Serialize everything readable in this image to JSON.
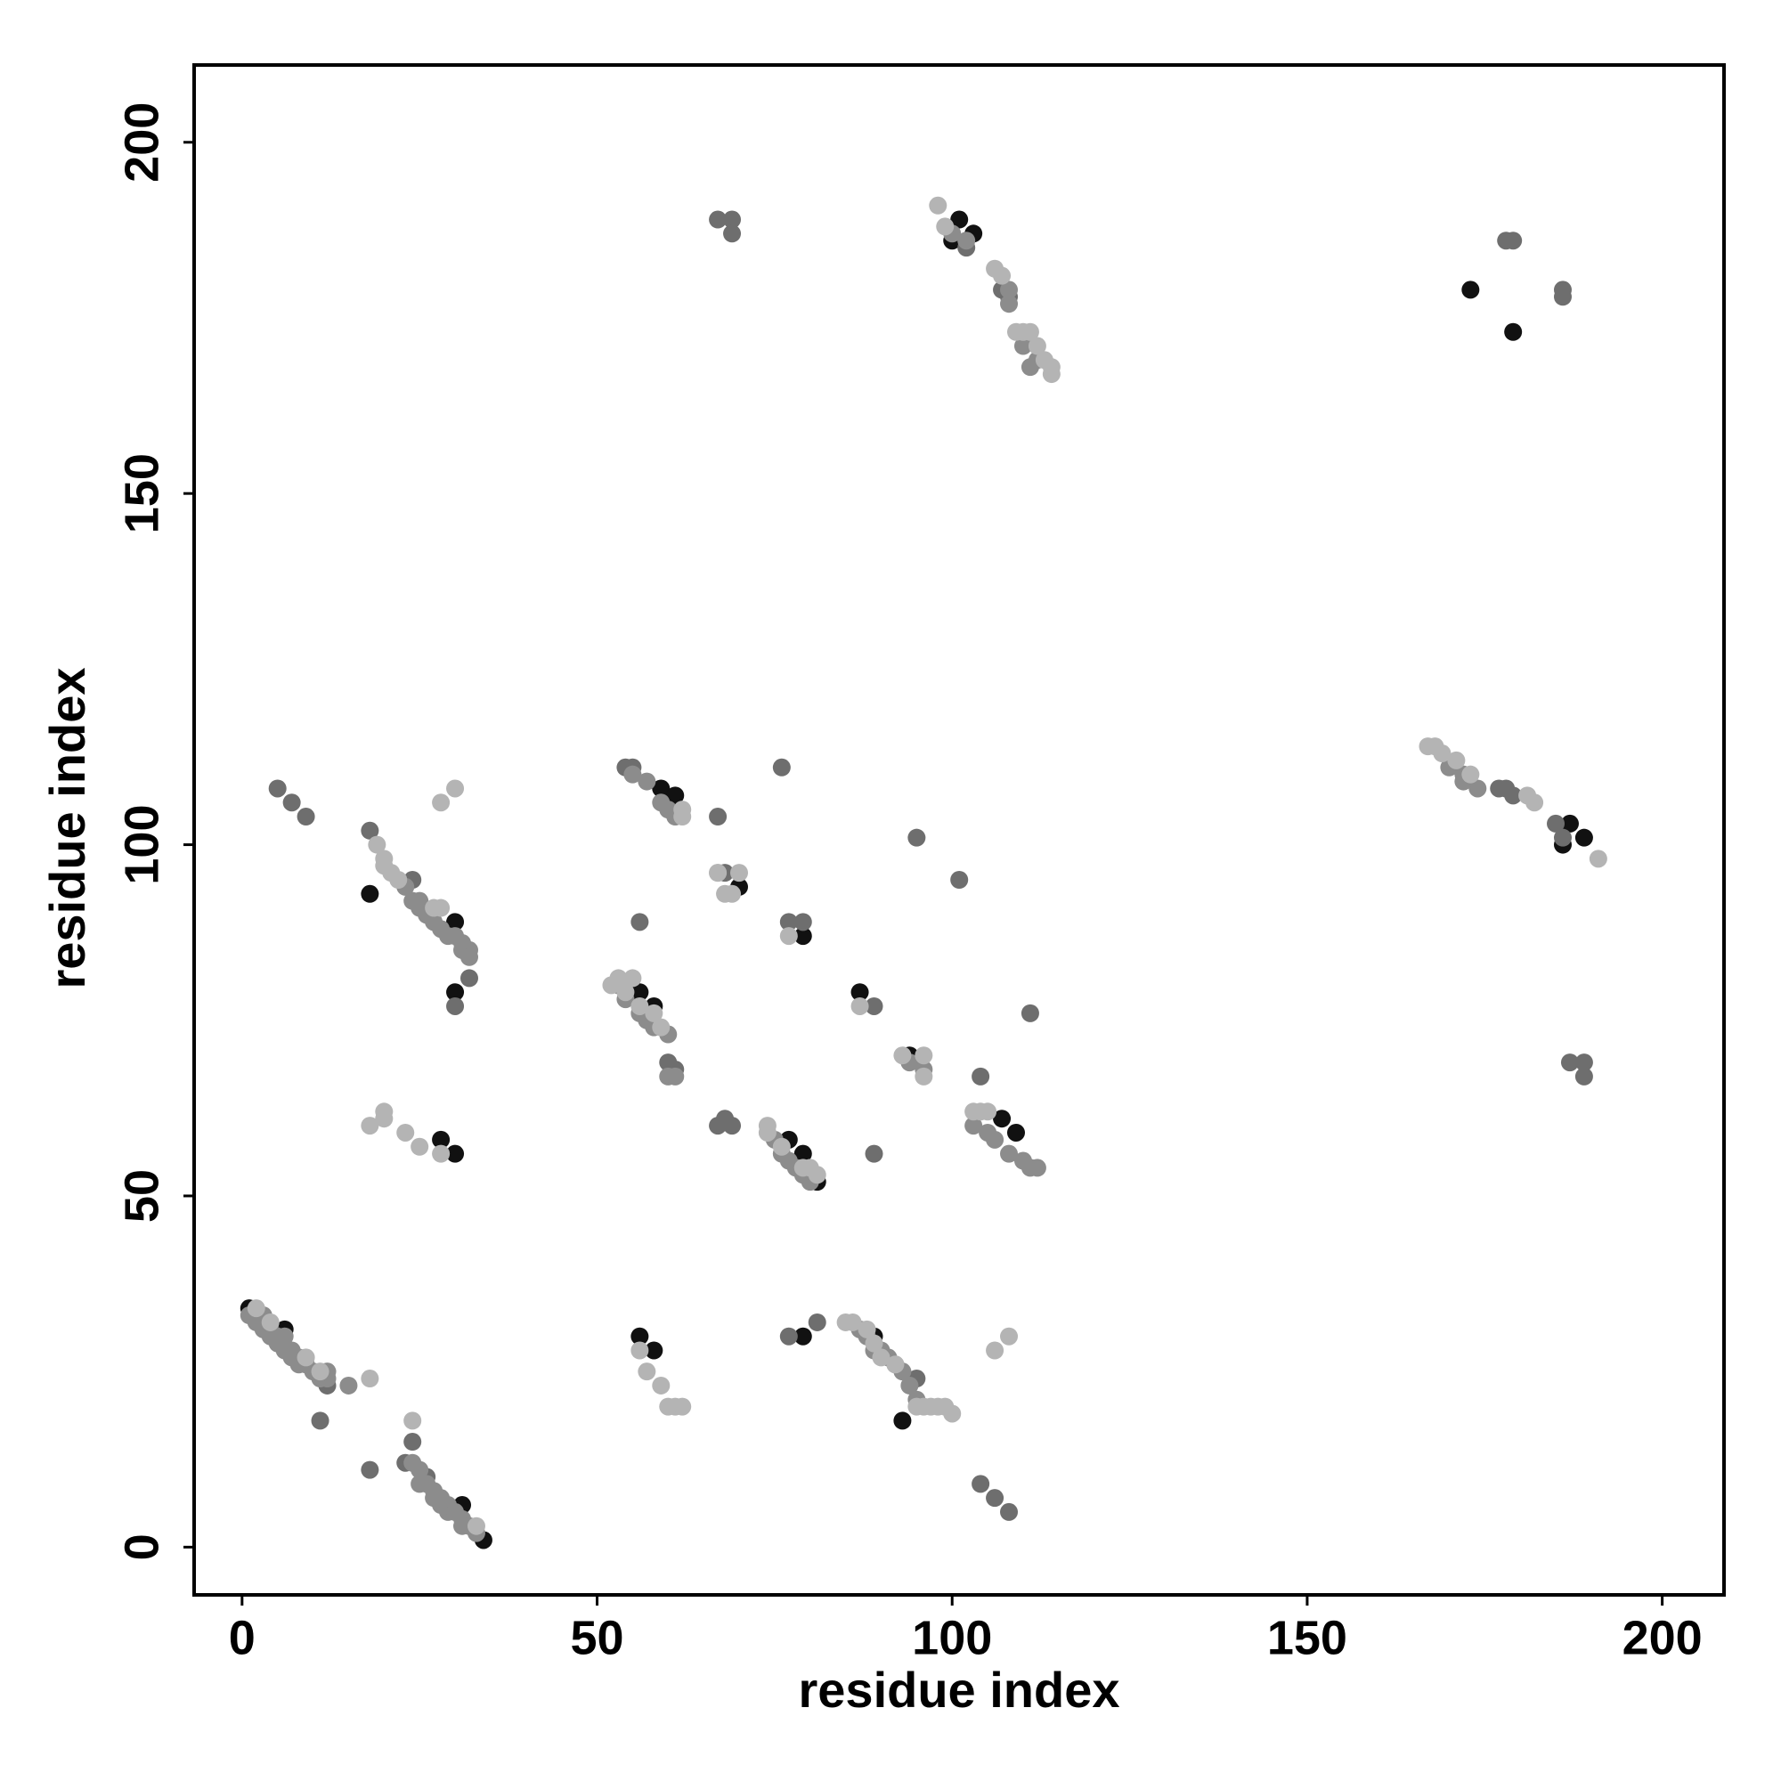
{
  "chart_data": {
    "type": "scatter",
    "x_label": "residue index",
    "y_label": "residue index",
    "xlim": [
      -6.75,
      208.7
    ],
    "ylim": [
      -6.8,
      211
    ],
    "xticks": [
      0,
      50,
      100,
      150,
      200
    ],
    "yticks": [
      0,
      50,
      100,
      150,
      200
    ],
    "grid": false,
    "series": [
      {
        "color": "#111111",
        "x": [
          1,
          6,
          31,
          34,
          18,
          30,
          30,
          28,
          30,
          56,
          58,
          59,
          61,
          70,
          79,
          56,
          58,
          79,
          87,
          89,
          93,
          94,
          77,
          79,
          81,
          107,
          109,
          101,
          103,
          100,
          173,
          179,
          187,
          186,
          189
        ],
        "y": [
          34,
          31,
          6,
          1,
          93,
          89,
          79,
          58,
          56,
          79,
          77,
          108,
          107,
          94,
          87,
          30,
          28,
          30,
          79,
          30,
          18,
          70,
          58,
          56,
          52,
          61,
          59,
          189,
          187,
          186,
          179,
          173,
          103,
          100,
          101
        ]
      },
      {
        "color": "#6e6e6e",
        "x": [
          5,
          7,
          9,
          18,
          11,
          18,
          24,
          23,
          30,
          32,
          54,
          55,
          67,
          76,
          56,
          60,
          61,
          67,
          68,
          69,
          77,
          79,
          89,
          95,
          101,
          111,
          104,
          89,
          104,
          106,
          108,
          81,
          77,
          95,
          67,
          69,
          69,
          102,
          107,
          108,
          178,
          179,
          186,
          186,
          177,
          178,
          179,
          185,
          186,
          187,
          189,
          189,
          68,
          24,
          12,
          2,
          4,
          26
        ],
        "y": [
          108,
          106,
          104,
          102,
          18,
          11,
          15,
          12,
          77,
          81,
          111,
          111,
          104,
          111,
          89,
          69,
          68,
          60,
          61,
          60,
          89,
          89,
          77,
          101,
          95,
          76,
          67,
          56,
          9,
          7,
          5,
          32,
          30,
          24,
          189,
          189,
          187,
          185,
          179,
          178,
          186,
          186,
          179,
          178,
          108,
          108,
          107,
          103,
          101,
          69,
          69,
          67,
          96,
          95,
          23,
          33,
          31,
          10
        ]
      },
      {
        "color": "#8c8c8c",
        "x": [
          1,
          2,
          3,
          3,
          4,
          5,
          5,
          6,
          6,
          7,
          7,
          8,
          8,
          9,
          10,
          11,
          12,
          12,
          15,
          24,
          25,
          25,
          26,
          27,
          27,
          28,
          28,
          29,
          29,
          30,
          31,
          31,
          32,
          33,
          23,
          24,
          25,
          25,
          26,
          27,
          28,
          29,
          30,
          31,
          31,
          32,
          32,
          53,
          54,
          56,
          57,
          58,
          60,
          60,
          61,
          55,
          57,
          59,
          60,
          61,
          75,
          76,
          77,
          78,
          79,
          80,
          87,
          88,
          89,
          90,
          91,
          92,
          93,
          94,
          95,
          103,
          105,
          106,
          108,
          110,
          111,
          112,
          94,
          96,
          108,
          108,
          110,
          112,
          170,
          172,
          174,
          100,
          102,
          111,
          172
        ],
        "y": [
          33,
          32,
          33,
          31,
          30,
          30,
          29,
          30,
          28,
          28,
          27,
          27,
          26,
          26,
          25,
          24,
          25,
          24,
          23,
          12,
          11,
          9,
          9,
          8,
          7,
          7,
          6,
          6,
          5,
          5,
          4,
          3,
          3,
          2,
          94,
          92,
          92,
          91,
          90,
          89,
          88,
          87,
          87,
          86,
          85,
          85,
          84,
          80,
          78,
          76,
          75,
          74,
          73,
          67,
          67,
          110,
          109,
          106,
          105,
          104,
          58,
          56,
          55,
          54,
          53,
          52,
          31,
          30,
          28,
          28,
          27,
          26,
          25,
          23,
          21,
          60,
          59,
          58,
          56,
          55,
          54,
          54,
          69,
          68,
          177,
          179,
          171,
          169,
          111,
          110,
          108,
          187,
          186,
          168,
          109
        ]
      },
      {
        "color": "#b4b4b4",
        "x": [
          2,
          4,
          9,
          11,
          18,
          24,
          19,
          20,
          20,
          21,
          22,
          28,
          28,
          20,
          20,
          18,
          23,
          25,
          28,
          52,
          53,
          55,
          54,
          56,
          58,
          59,
          62,
          62,
          67,
          68,
          69,
          74,
          74,
          76,
          79,
          80,
          81,
          93,
          96,
          96,
          103,
          104,
          105,
          56,
          57,
          59,
          60,
          61,
          62,
          85,
          86,
          88,
          89,
          90,
          92,
          95,
          96,
          97,
          98,
          99,
          100,
          106,
          108,
          98,
          99,
          106,
          107,
          109,
          110,
          111,
          112,
          113,
          114,
          114,
          167,
          168,
          169,
          171,
          173,
          181,
          182,
          191,
          77,
          87,
          67,
          70,
          27,
          33,
          30
        ],
        "y": [
          34,
          32,
          27,
          25,
          24,
          18,
          100,
          98,
          97,
          96,
          95,
          106,
          91,
          62,
          61,
          60,
          59,
          57,
          56,
          80,
          81,
          81,
          79,
          77,
          76,
          74,
          105,
          104,
          96,
          93,
          93,
          60,
          59,
          57,
          54,
          54,
          53,
          70,
          70,
          67,
          62,
          62,
          62,
          28,
          25,
          23,
          20,
          20,
          20,
          32,
          32,
          31,
          29,
          27,
          26,
          20,
          20,
          20,
          20,
          20,
          19,
          28,
          30,
          191,
          188,
          182,
          181,
          173,
          173,
          173,
          171,
          169,
          168,
          167,
          114,
          114,
          113,
          112,
          110,
          107,
          106,
          98,
          87,
          77,
          96,
          96,
          91,
          3,
          108
        ]
      }
    ]
  }
}
